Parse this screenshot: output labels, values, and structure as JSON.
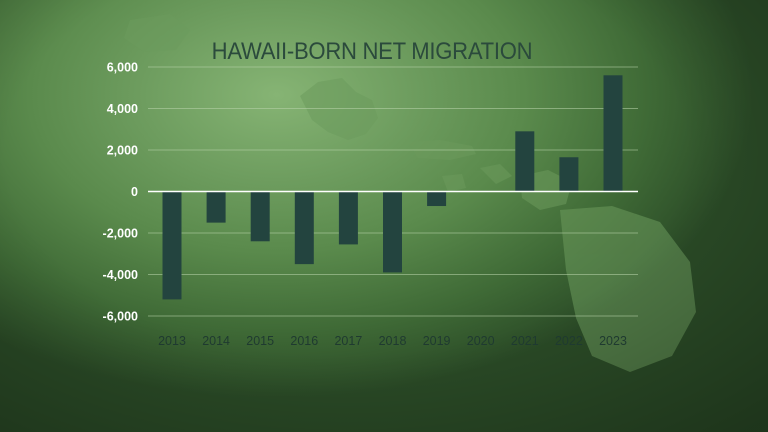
{
  "chart_data": {
    "type": "bar",
    "title": "HAWAII-BORN NET MIGRATION",
    "categories": [
      "2013",
      "2014",
      "2015",
      "2016",
      "2017",
      "2018",
      "2019",
      "2020",
      "2021",
      "2022",
      "2023"
    ],
    "values": [
      -5200,
      -1500,
      -2400,
      -3500,
      -2550,
      -3900,
      -700,
      0,
      2900,
      1650,
      5600
    ],
    "ylim": [
      -6000,
      6000
    ],
    "yticks": [
      6000,
      4000,
      2000,
      0,
      -2000,
      -4000,
      -6000
    ],
    "ytick_labels": [
      "6,000",
      "4,000",
      "2,000",
      "0",
      "-2,000",
      "-4,000",
      "-6,000"
    ],
    "grid": true,
    "colors": {
      "bar": "#23443f",
      "grid": "#b9d4ab",
      "zero_line": "#ffffff",
      "title": "#2b4a3c"
    }
  }
}
